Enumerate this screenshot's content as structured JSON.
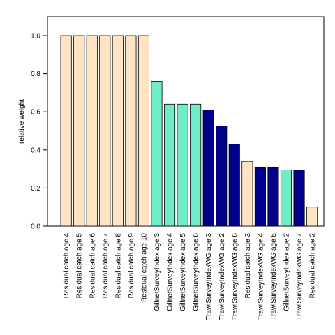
{
  "chart_data": {
    "type": "bar",
    "xlabel": "",
    "ylabel": "relative weight",
    "ylim": [
      0,
      1.1
    ],
    "yticks": [
      "0.0",
      "0.2",
      "0.4",
      "0.6",
      "0.8",
      "1.0"
    ],
    "legend": "none",
    "grid": false,
    "categories": [
      "Residual catch age 4",
      "Residual catch age 5",
      "Residual catch age 6",
      "Residual catch age 7",
      "Residual catch age 8",
      "Residual catch age 9",
      "Residual catch age 10",
      "GillnetSurveyIndex age 3",
      "GillnetSurveyIndex age 4",
      "GillnetSurveyIndex age 5",
      "GillnetSurveyIndex age 6",
      "TrawlSurveyIndexWG age 3",
      "TrawlSurveyIndexWG age 2",
      "TrawlSurveyIndexWG age 6",
      "Residual catch age 3",
      "TrawlSurveyIndexWG age 4",
      "TrawlSurveyIndexWG age 5",
      "GillnetSurveyIndex age 2",
      "TrawlSurveyIndexWG age 7",
      "Residual catch age 2"
    ],
    "values": [
      1.0,
      1.0,
      1.0,
      1.0,
      1.0,
      1.0,
      1.0,
      0.76,
      0.64,
      0.64,
      0.64,
      0.61,
      0.525,
      0.43,
      0.34,
      0.31,
      0.31,
      0.295,
      0.295,
      0.1
    ],
    "colors": [
      "#FFE4C4",
      "#FFE4C4",
      "#FFE4C4",
      "#FFE4C4",
      "#FFE4C4",
      "#FFE4C4",
      "#FFE4C4",
      "#6EEDC6",
      "#6EEDC6",
      "#6EEDC6",
      "#6EEDC6",
      "#00008B",
      "#00008B",
      "#00008B",
      "#FFE4C4",
      "#00008B",
      "#00008B",
      "#6EEDC6",
      "#00008B",
      "#FFE4C4"
    ]
  }
}
